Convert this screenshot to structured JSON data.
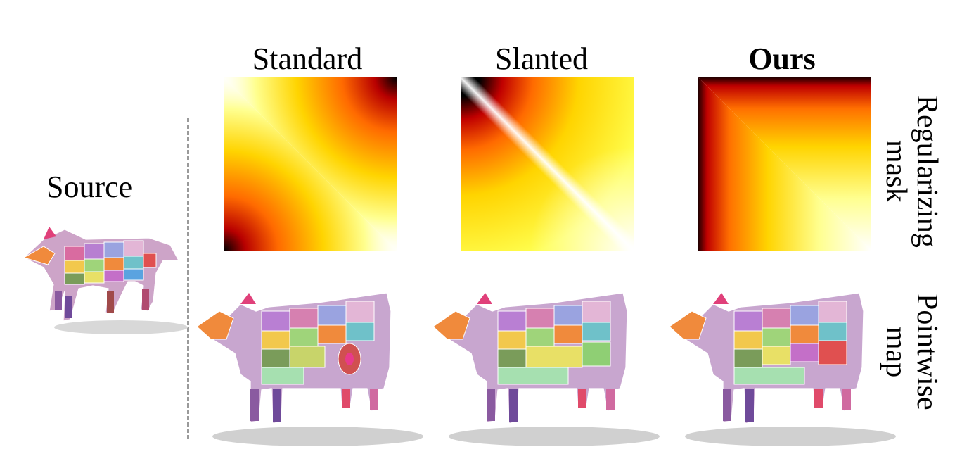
{
  "columns": [
    {
      "title": "Standard"
    },
    {
      "title": "Slanted"
    },
    {
      "title": "Ours"
    }
  ],
  "rows": {
    "mask_label": "Regularizing mask",
    "pointwise_label": "Pointwise map"
  },
  "source_label": "Source",
  "colormap": [
    "#000000",
    "#b80000",
    "#ff5a00",
    "#ffd000",
    "#ffff70",
    "#ffffff"
  ]
}
